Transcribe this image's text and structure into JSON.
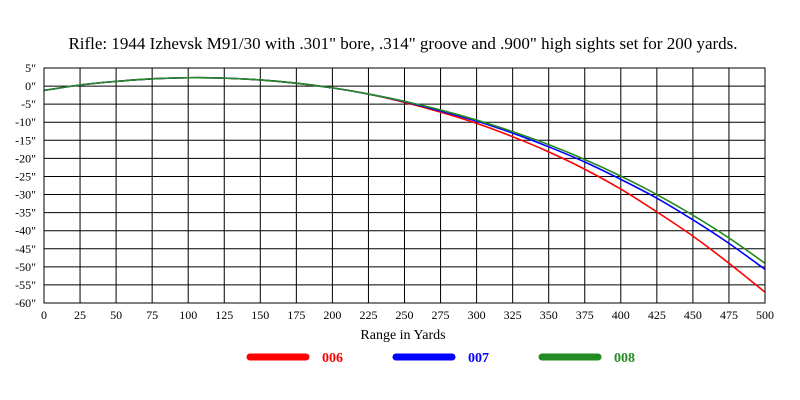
{
  "chart_data": {
    "type": "line",
    "title": "Rifle:  1944 Izhevsk M91/30 with .301\" bore, .314\" groove and .900\" high sights set for 200 yards.",
    "xlabel": "Range in Yards",
    "ylabel": "",
    "xlim": [
      0,
      500
    ],
    "ylim": [
      -60,
      5
    ],
    "x_ticks": [
      0,
      25,
      50,
      75,
      100,
      125,
      150,
      175,
      200,
      225,
      250,
      275,
      300,
      325,
      350,
      375,
      400,
      425,
      450,
      475,
      500
    ],
    "x_tick_labels": [
      "0",
      "25",
      "50",
      "75",
      "100",
      "125",
      "150",
      "175",
      "200",
      "225",
      "250",
      "275",
      "300",
      "325",
      "350",
      "375",
      "400",
      "425",
      "450",
      "475",
      "500"
    ],
    "y_ticks": [
      5,
      0,
      -5,
      -10,
      -15,
      -20,
      -25,
      -30,
      -35,
      -40,
      -45,
      -50,
      -55,
      -60
    ],
    "y_tick_labels": [
      "5\"",
      "0\"",
      "-5\"",
      "-10\"",
      "-15\"",
      "-20\"",
      "-25\"",
      "-30\"",
      "-35\"",
      "-40\"",
      "-45\"",
      "-50\"",
      "-55\"",
      "-60\""
    ],
    "grid": true,
    "legend_position": "bottom",
    "x": [
      0,
      25,
      50,
      75,
      100,
      125,
      150,
      175,
      200,
      225,
      250,
      275,
      300,
      325,
      350,
      375,
      400,
      425,
      450,
      475,
      500
    ],
    "series": [
      {
        "name": "006",
        "color": "#ff0000",
        "values": [
          -1.2,
          0.3,
          1.3,
          2.0,
          2.3,
          2.2,
          1.7,
          0.8,
          -0.5,
          -2.2,
          -4.5,
          -7.2,
          -10.3,
          -14.0,
          -18.2,
          -23.0,
          -28.5,
          -34.8,
          -41.5,
          -49.0,
          -57.0
        ]
      },
      {
        "name": "007",
        "color": "#0000ff",
        "values": [
          -1.2,
          0.3,
          1.3,
          2.0,
          2.3,
          2.2,
          1.7,
          0.8,
          -0.5,
          -2.2,
          -4.3,
          -6.9,
          -9.7,
          -13.0,
          -16.8,
          -21.0,
          -25.8,
          -31.0,
          -37.0,
          -43.5,
          -50.7
        ]
      },
      {
        "name": "008",
        "color": "#228b22",
        "values": [
          -1.2,
          0.3,
          1.3,
          2.0,
          2.3,
          2.2,
          1.7,
          0.8,
          -0.5,
          -2.2,
          -4.2,
          -6.6,
          -9.4,
          -12.6,
          -16.2,
          -20.3,
          -24.9,
          -30.0,
          -35.7,
          -42.0,
          -49.0
        ]
      }
    ]
  }
}
